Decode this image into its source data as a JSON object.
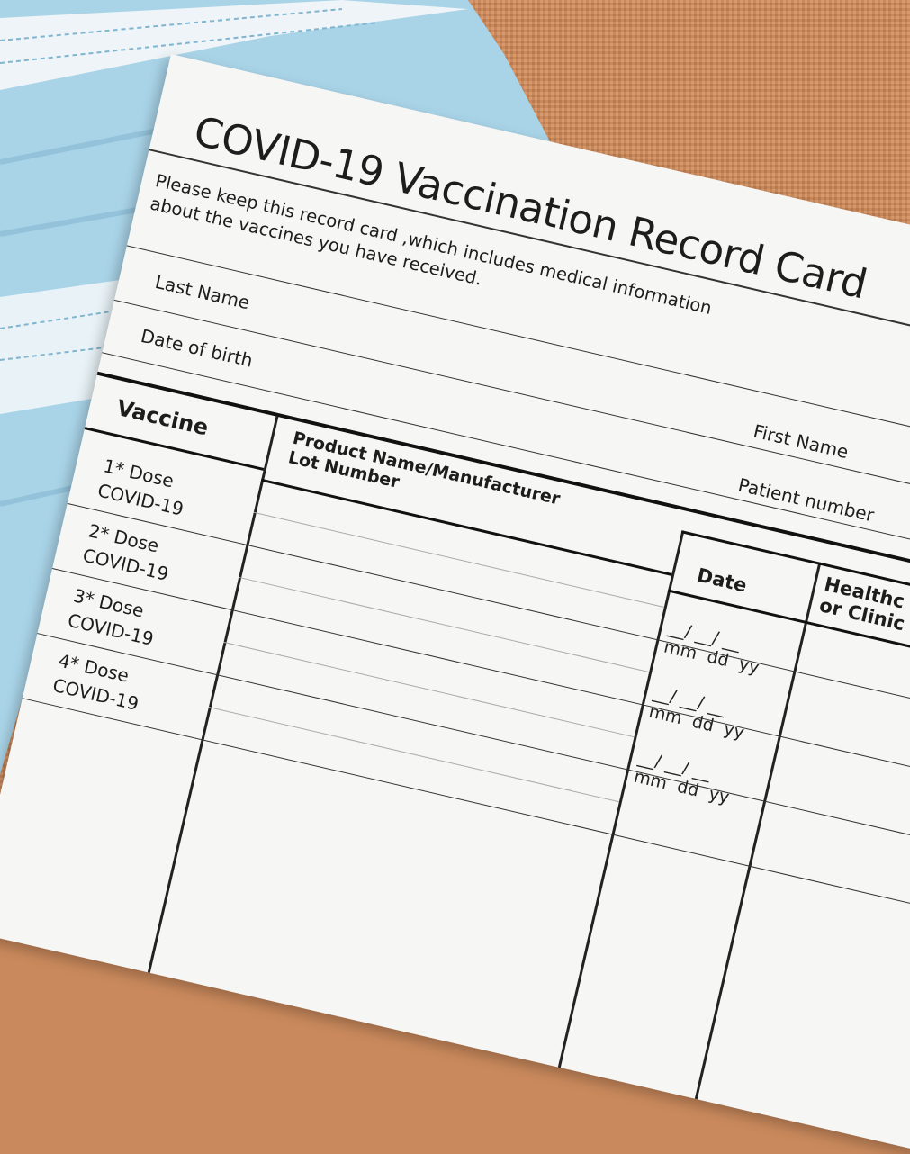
{
  "card": {
    "title": "COVID-19 Vaccination Record Card",
    "intro_line1": "Please keep this record card ,which includes medical information",
    "intro_line2": "about the vaccines you have received.",
    "last_name_label": "Last Name",
    "first_name_label": "First Name",
    "dob_label": "Date of birth",
    "patient_number_label": "Patient number",
    "table": {
      "col_vaccine": "Vaccine",
      "col_product_line1": "Product Name/Manufacturer",
      "col_product_line2": "Lot Number",
      "col_date": "Date",
      "col_healthcare_line1": "Healthc",
      "col_healthcare_line2": "or Clinic",
      "rows": [
        {
          "dose": "1* Dose",
          "vaccine": "COVID-19"
        },
        {
          "dose": "2* Dose",
          "vaccine": "COVID-19"
        },
        {
          "dose": "3* Dose",
          "vaccine": "COVID-19"
        },
        {
          "dose": "4* Dose",
          "vaccine": "COVID-19"
        }
      ],
      "date_format": {
        "mm": "mm",
        "dd": "dd",
        "yy": "yy"
      }
    }
  },
  "colors": {
    "burlap": "#c9895c",
    "mask": "#a9d4e8",
    "card": "#f6f6f4"
  }
}
